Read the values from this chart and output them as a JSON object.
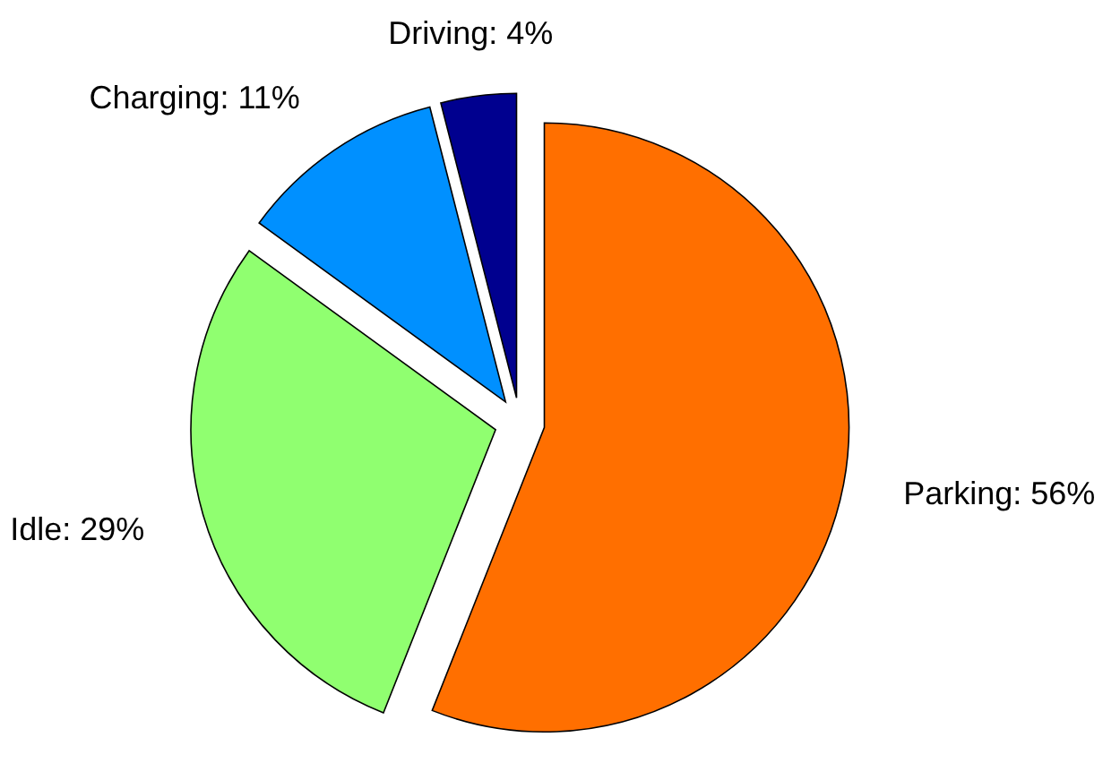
{
  "chart_data": {
    "type": "pie",
    "categories": [
      "Parking",
      "Idle",
      "Charging",
      "Driving"
    ],
    "values": [
      56,
      29,
      11,
      4
    ],
    "value_labels": [
      "56%",
      "29%",
      "11%",
      "4%"
    ],
    "colors": [
      "#ff6f00",
      "#90ff70",
      "#0090ff",
      "#00008f"
    ]
  }
}
